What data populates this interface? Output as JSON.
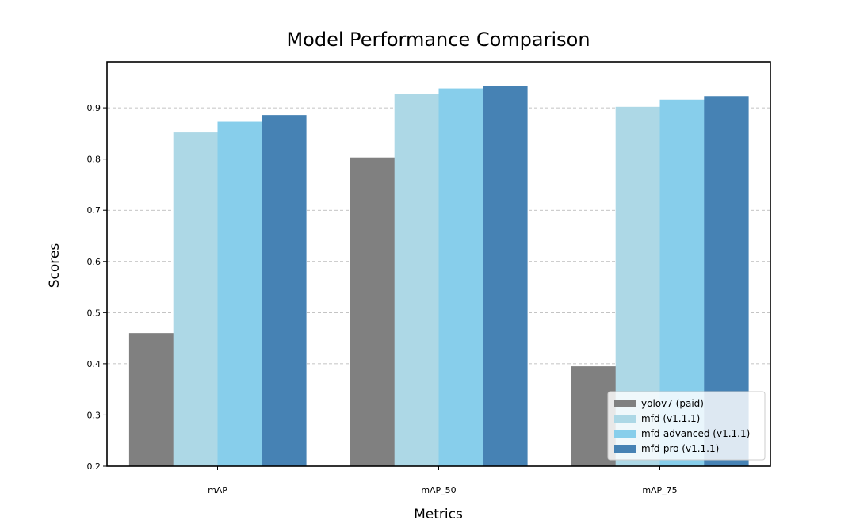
{
  "chart_data": {
    "type": "bar",
    "title": "Model Performance Comparison",
    "xlabel": "Metrics",
    "ylabel": "Scores",
    "categories": [
      "mAP",
      "mAP_50",
      "mAP_75"
    ],
    "ylim": [
      0.2,
      0.99
    ],
    "yticks": [
      "0.2",
      "0.3",
      "0.4",
      "0.5",
      "0.6",
      "0.7",
      "0.8",
      "0.9"
    ],
    "grid": "y-dashed",
    "legend_position": "bottom-right",
    "series": [
      {
        "name": "yolov7 (paid)",
        "color": "#808080",
        "values": [
          0.46,
          0.803,
          0.395
        ]
      },
      {
        "name": "mfd (v1.1.1)",
        "color": "#add8e6",
        "values": [
          0.852,
          0.928,
          0.902
        ]
      },
      {
        "name": "mfd-advanced (v1.1.1)",
        "color": "#87ceeb",
        "values": [
          0.873,
          0.938,
          0.916
        ]
      },
      {
        "name": "mfd-pro (v1.1.1)",
        "color": "#4682b4",
        "values": [
          0.886,
          0.943,
          0.923
        ]
      }
    ]
  }
}
